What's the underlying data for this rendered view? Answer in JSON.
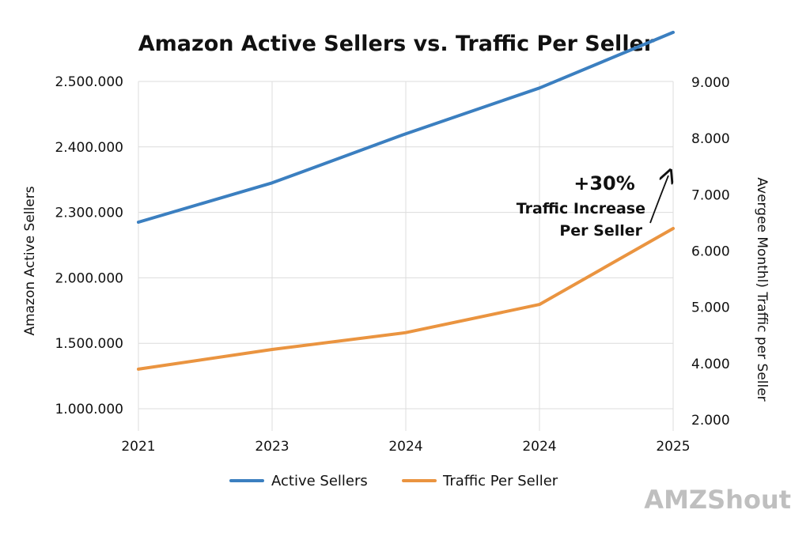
{
  "chart_data": {
    "type": "line",
    "title": "Amazon Active Sellers vs. Traffic Per Seller",
    "categories": [
      "2021",
      "2023",
      "2024",
      "2024",
      "2025"
    ],
    "y_left": {
      "label": "Amazon Active Sellers",
      "ticks": [
        "1.000.000",
        "1.500.000",
        "2.000.000",
        "2.300.000",
        "2.400.000",
        "2.500.000"
      ]
    },
    "y_right": {
      "label": "Avergee Monthl) Traffic per Seller",
      "ticks": [
        "2.000",
        "4.000",
        "5.000",
        "6.000",
        "7.000",
        "8.000",
        "9.000"
      ]
    },
    "series": [
      {
        "name": "Active Sellers",
        "axis": "left",
        "color": "#3b7fc0",
        "tick_positions": [
          2.85,
          3.45,
          4.2,
          4.9,
          5.75
        ]
      },
      {
        "name": "Traffic Per Seller",
        "axis": "right",
        "color": "#ea9440",
        "values": [
          3800,
          4250,
          4550,
          5050,
          6400
        ]
      }
    ],
    "annotation": {
      "headline": "+30%",
      "line1": "Traffic Increase",
      "line2": "Per Seller"
    },
    "legend": "bottom-center",
    "grid": true
  },
  "watermark": "AMZShout"
}
